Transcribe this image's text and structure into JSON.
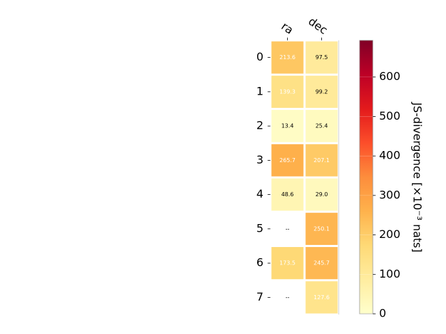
{
  "chart_data": {
    "type": "heatmap",
    "columns": [
      "ra",
      "dec"
    ],
    "rows": [
      "0",
      "1",
      "2",
      "3",
      "4",
      "5",
      "6",
      "7"
    ],
    "values": [
      [
        213.6,
        97.5
      ],
      [
        139.3,
        99.2
      ],
      [
        13.4,
        25.4
      ],
      [
        265.7,
        207.1
      ],
      [
        48.6,
        29.0
      ],
      [
        null,
        250.1
      ],
      [
        173.5,
        245.7
      ],
      [
        null,
        127.6
      ]
    ],
    "cell_labels": [
      [
        "213.6",
        "97.5"
      ],
      [
        "139.3",
        "99.2"
      ],
      [
        "13.4",
        "25.4"
      ],
      [
        "265.7",
        "207.1"
      ],
      [
        "48.6",
        "29.0"
      ],
      [
        "--",
        "250.1"
      ],
      [
        "173.5",
        "245.7"
      ],
      [
        "--",
        "127.6"
      ]
    ],
    "colorbar": {
      "label": "JS-divergence [×10⁻³ nats]",
      "colormap": "YlOrRd",
      "range": [
        0,
        693
      ],
      "ticks": [
        0,
        100,
        200,
        300,
        400,
        500,
        600
      ],
      "tick_labels": [
        "0",
        "100",
        "200",
        "300",
        "400",
        "500",
        "600"
      ]
    }
  }
}
